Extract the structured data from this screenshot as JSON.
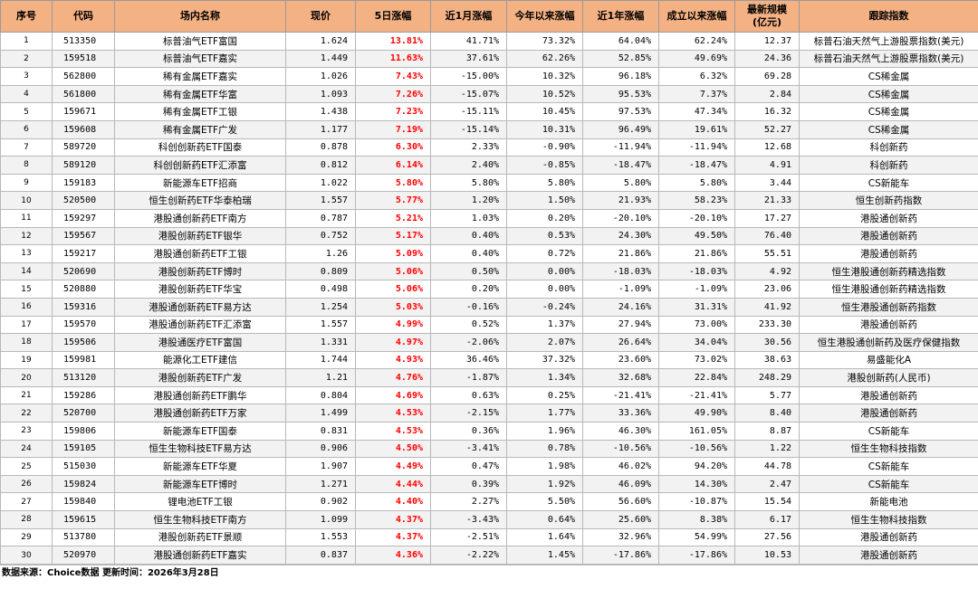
{
  "table": {
    "headers": [
      "序号",
      "代码",
      "场内名称",
      "现价",
      "5日涨幅",
      "近1月涨幅",
      "今年以来涨幅",
      "近1年涨幅",
      "成立以来涨幅",
      "最新规模\n(亿元)",
      "跟踪指数"
    ],
    "rows": [
      [
        "1",
        "513350",
        "标普油气ETF富国",
        "1.624",
        "13.81%",
        "41.71%",
        "73.32%",
        "64.04%",
        "62.24%",
        "12.37",
        "标普石油天然气上游股票指数(美元)"
      ],
      [
        "2",
        "159518",
        "标普油气ETF嘉实",
        "1.449",
        "11.63%",
        "37.61%",
        "62.26%",
        "52.85%",
        "49.69%",
        "24.36",
        "标普石油天然气上游股票指数(美元)"
      ],
      [
        "3",
        "562800",
        "稀有金属ETF嘉实",
        "1.026",
        "7.43%",
        "-15.00%",
        "10.32%",
        "96.18%",
        "6.32%",
        "69.28",
        "CS稀金属"
      ],
      [
        "4",
        "561800",
        "稀有金属ETF华富",
        "1.093",
        "7.26%",
        "-15.07%",
        "10.52%",
        "95.53%",
        "7.37%",
        "2.84",
        "CS稀金属"
      ],
      [
        "5",
        "159671",
        "稀有金属ETF工银",
        "1.438",
        "7.23%",
        "-15.11%",
        "10.45%",
        "97.53%",
        "47.34%",
        "16.32",
        "CS稀金属"
      ],
      [
        "6",
        "159608",
        "稀有金属ETF广发",
        "1.177",
        "7.19%",
        "-15.14%",
        "10.31%",
        "96.49%",
        "19.61%",
        "52.27",
        "CS稀金属"
      ],
      [
        "7",
        "589720",
        "科创创新药ETF国泰",
        "0.878",
        "6.30%",
        "2.33%",
        "-0.90%",
        "-11.94%",
        "-11.94%",
        "12.68",
        "科创新药"
      ],
      [
        "8",
        "589120",
        "科创创新药ETF汇添富",
        "0.812",
        "6.14%",
        "2.40%",
        "-0.85%",
        "-18.47%",
        "-18.47%",
        "4.91",
        "科创新药"
      ],
      [
        "9",
        "159183",
        "新能源车ETF招商",
        "1.022",
        "5.80%",
        "5.80%",
        "5.80%",
        "5.80%",
        "5.80%",
        "3.44",
        "CS新能车"
      ],
      [
        "10",
        "520500",
        "恒生创新药ETF华泰柏瑞",
        "1.557",
        "5.77%",
        "1.20%",
        "1.50%",
        "21.93%",
        "58.23%",
        "21.33",
        "恒生创新药指数"
      ],
      [
        "11",
        "159297",
        "港股通创新药ETF南方",
        "0.787",
        "5.21%",
        "1.03%",
        "0.20%",
        "-20.10%",
        "-20.10%",
        "17.27",
        "港股通创新药"
      ],
      [
        "12",
        "159567",
        "港股创新药ETF银华",
        "0.752",
        "5.17%",
        "0.40%",
        "0.53%",
        "24.30%",
        "49.50%",
        "76.40",
        "港股通创新药"
      ],
      [
        "13",
        "159217",
        "港股通创新药ETF工银",
        "1.26",
        "5.09%",
        "0.40%",
        "0.72%",
        "21.86%",
        "21.86%",
        "55.51",
        "港股通创新药"
      ],
      [
        "14",
        "520690",
        "港股创新药ETF博时",
        "0.809",
        "5.06%",
        "0.50%",
        "0.00%",
        "-18.03%",
        "-18.03%",
        "4.92",
        "恒生港股通创新药精选指数"
      ],
      [
        "15",
        "520880",
        "港股创新药ETF华宝",
        "0.498",
        "5.06%",
        "0.20%",
        "0.00%",
        "-1.09%",
        "-1.09%",
        "23.06",
        "恒生港股通创新药精选指数"
      ],
      [
        "16",
        "159316",
        "港股通创新药ETF易方达",
        "1.254",
        "5.03%",
        "-0.16%",
        "-0.24%",
        "24.16%",
        "31.31%",
        "41.92",
        "恒生港股通创新药指数"
      ],
      [
        "17",
        "159570",
        "港股通创新药ETF汇添富",
        "1.557",
        "4.99%",
        "0.52%",
        "1.37%",
        "27.94%",
        "73.00%",
        "233.30",
        "港股通创新药"
      ],
      [
        "18",
        "159506",
        "港股通医疗ETF富国",
        "1.331",
        "4.97%",
        "-2.06%",
        "2.07%",
        "26.64%",
        "34.04%",
        "30.56",
        "恒生港股通创新药及医疗保健指数"
      ],
      [
        "19",
        "159981",
        "能源化工ETF建信",
        "1.744",
        "4.93%",
        "36.46%",
        "37.32%",
        "23.60%",
        "73.02%",
        "38.63",
        "易盛能化A"
      ],
      [
        "20",
        "513120",
        "港股创新药ETF广发",
        "1.21",
        "4.76%",
        "-1.87%",
        "1.34%",
        "32.68%",
        "22.84%",
        "248.29",
        "港股创新药(人民币)"
      ],
      [
        "21",
        "159286",
        "港股通创新药ETF鹏华",
        "0.804",
        "4.69%",
        "0.63%",
        "0.25%",
        "-21.41%",
        "-21.41%",
        "5.77",
        "港股通创新药"
      ],
      [
        "22",
        "520700",
        "港股通创新药ETF万家",
        "1.499",
        "4.53%",
        "-2.15%",
        "1.77%",
        "33.36%",
        "49.90%",
        "8.40",
        "港股通创新药"
      ],
      [
        "23",
        "159806",
        "新能源车ETF国泰",
        "0.831",
        "4.53%",
        "0.36%",
        "1.96%",
        "46.30%",
        "161.05%",
        "8.87",
        "CS新能车"
      ],
      [
        "24",
        "159105",
        "恒生生物科技ETF易方达",
        "0.906",
        "4.50%",
        "-3.41%",
        "0.78%",
        "-10.56%",
        "-10.56%",
        "1.22",
        "恒生生物科技指数"
      ],
      [
        "25",
        "515030",
        "新能源车ETF华夏",
        "1.907",
        "4.49%",
        "0.47%",
        "1.98%",
        "46.02%",
        "94.20%",
        "44.78",
        "CS新能车"
      ],
      [
        "26",
        "159824",
        "新能源车ETF博时",
        "1.271",
        "4.44%",
        "0.39%",
        "1.92%",
        "46.09%",
        "14.30%",
        "2.47",
        "CS新能车"
      ],
      [
        "27",
        "159840",
        "锂电池ETF工银",
        "0.902",
        "4.40%",
        "2.27%",
        "5.50%",
        "56.60%",
        "-10.87%",
        "15.54",
        "新能电池"
      ],
      [
        "28",
        "159615",
        "恒生生物科技ETF南方",
        "1.099",
        "4.37%",
        "-3.43%",
        "0.64%",
        "25.60%",
        "8.38%",
        "6.17",
        "恒生生物科技指数"
      ],
      [
        "29",
        "513780",
        "港股创新药ETF景顺",
        "1.553",
        "4.37%",
        "-2.51%",
        "1.64%",
        "32.96%",
        "54.99%",
        "27.56",
        "港股通创新药"
      ],
      [
        "30",
        "520970",
        "港股通创新药ETF嘉实",
        "0.837",
        "4.36%",
        "-2.22%",
        "1.45%",
        "-17.86%",
        "-17.86%",
        "10.53",
        "港股通创新药"
      ]
    ]
  },
  "footer": "数据来源：Choice数据  更新时间：2026年3月28日",
  "colors": {
    "header_bg": "#f4b183",
    "highlight": "#ff0000",
    "alt_row": "#f2f2f2"
  }
}
